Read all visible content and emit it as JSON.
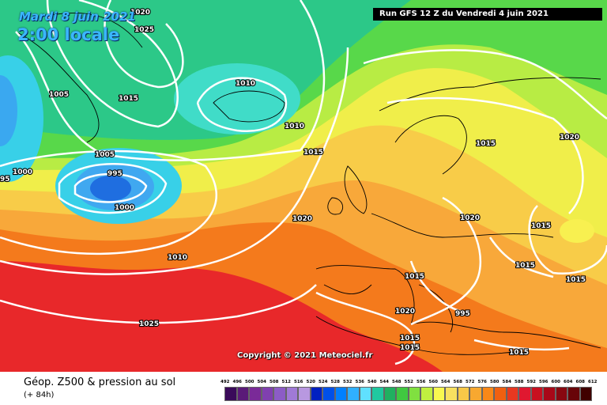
{
  "header": {
    "date_label": "Mardi 8 juin 2021",
    "time_label": "2:00 locale",
    "run_label": "Run GFS 12 Z du Vendredi 4 juin 2021"
  },
  "copyright": "Copyright © 2021 Meteociel.fr",
  "legend": {
    "title": "Géop. Z500 & pression au sol",
    "subtitle": "(+ 84h)",
    "ticks": [
      "492",
      "496",
      "500",
      "504",
      "508",
      "512",
      "516",
      "520",
      "524",
      "528",
      "532",
      "536",
      "540",
      "544",
      "548",
      "552",
      "556",
      "560",
      "564",
      "568",
      "572",
      "576",
      "580",
      "584",
      "588",
      "592",
      "596",
      "600",
      "604",
      "608",
      "612"
    ],
    "colors": [
      "#3a0a5a",
      "#5a1a78",
      "#7a2a98",
      "#8040b0",
      "#8c5cc6",
      "#a07ad6",
      "#b898e0",
      "#0020c0",
      "#0050e8",
      "#0080ff",
      "#30b0ff",
      "#60e0ff",
      "#20c8a0",
      "#20b060",
      "#40c840",
      "#80e040",
      "#c0f040",
      "#f8f850",
      "#f8e060",
      "#f8c848",
      "#f8a830",
      "#f88818",
      "#f06010",
      "#e83820",
      "#e01830",
      "#c81020",
      "#a80818",
      "#880810",
      "#680408",
      "#400000"
    ]
  },
  "isobars": {
    "labels": [
      {
        "id": "iso-1020-tl",
        "text": "1020"
      },
      {
        "id": "iso-1025-tl",
        "text": "1025"
      },
      {
        "id": "iso-1005-l",
        "text": "1005"
      },
      {
        "id": "iso-1015-gr",
        "text": "1015"
      },
      {
        "id": "iso-1010-ic",
        "text": "1010"
      },
      {
        "id": "iso-1010-ic2",
        "text": "1010"
      },
      {
        "id": "iso-1005-c",
        "text": "1005"
      },
      {
        "id": "iso-1015-c",
        "text": "1015"
      },
      {
        "id": "iso-995",
        "text": "995"
      },
      {
        "id": "iso-1000-l",
        "text": "1000"
      },
      {
        "id": "iso-995-l",
        "text": "95"
      },
      {
        "id": "iso-1000-c",
        "text": "1000"
      },
      {
        "id": "iso-1020-fr",
        "text": "1020"
      },
      {
        "id": "iso-1010-atl",
        "text": "1010"
      },
      {
        "id": "iso-1020-sc",
        "text": "1020"
      },
      {
        "id": "iso-1020-de",
        "text": "1020"
      },
      {
        "id": "iso-1015-pl",
        "text": "1015"
      },
      {
        "id": "iso-1015-bal",
        "text": "1015"
      },
      {
        "id": "iso-1015-it",
        "text": "1015"
      },
      {
        "id": "iso-1015-gr2",
        "text": "1015"
      },
      {
        "id": "iso-1025-az",
        "text": "1025"
      },
      {
        "id": "iso-1020-med",
        "text": "1020"
      },
      {
        "id": "iso-1015-tun",
        "text": "1015"
      },
      {
        "id": "iso-1015-tun2",
        "text": "1015"
      },
      {
        "id": "iso-1015-lib",
        "text": "1015"
      },
      {
        "id": "iso-995-it",
        "text": "995"
      },
      {
        "id": "iso-1015-ee",
        "text": "1015"
      }
    ]
  }
}
